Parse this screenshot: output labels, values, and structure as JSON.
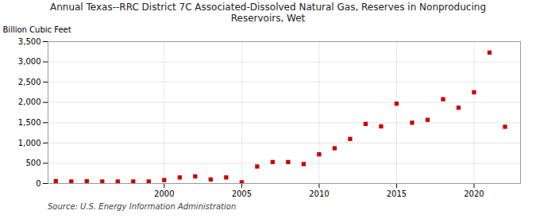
{
  "chart_data": {
    "type": "scatter",
    "title": "Annual Texas--RRC District 7C Associated-Dissolved Natural Gas, Reserves in Nonproducing\nReservoirs, Wet",
    "ylabel": "Billion Cubic Feet",
    "source": "Source: U.S. Energy Information Administration",
    "x": [
      1993,
      1994,
      1995,
      1996,
      1997,
      1998,
      1999,
      2000,
      2001,
      2002,
      2003,
      2004,
      2005,
      2006,
      2007,
      2008,
      2009,
      2010,
      2011,
      2012,
      2013,
      2014,
      2015,
      2016,
      2017,
      2018,
      2019,
      2020,
      2021,
      2022
    ],
    "values": [
      60,
      50,
      55,
      50,
      50,
      50,
      50,
      85,
      150,
      175,
      100,
      150,
      30,
      420,
      530,
      530,
      480,
      720,
      870,
      1100,
      1470,
      1410,
      1970,
      1500,
      1570,
      2080,
      1870,
      2250,
      3230,
      1400
    ],
    "color": "#cc0000",
    "marker": "square",
    "xlim": [
      1992.5,
      2023
    ],
    "xticks": [
      2000,
      2005,
      2010,
      2015,
      2020
    ],
    "ylim": [
      0,
      3500
    ],
    "yticks": [
      0,
      500,
      {
        "value": 1000,
        "label": "1,000"
      },
      {
        "value": 1500,
        "label": "1,500"
      },
      {
        "value": 2000,
        "label": "2,000"
      },
      {
        "value": 2500,
        "label": "2,500"
      },
      {
        "value": 3000,
        "label": "3,000"
      },
      {
        "value": 3500,
        "label": "3,500"
      }
    ],
    "grid": true
  }
}
